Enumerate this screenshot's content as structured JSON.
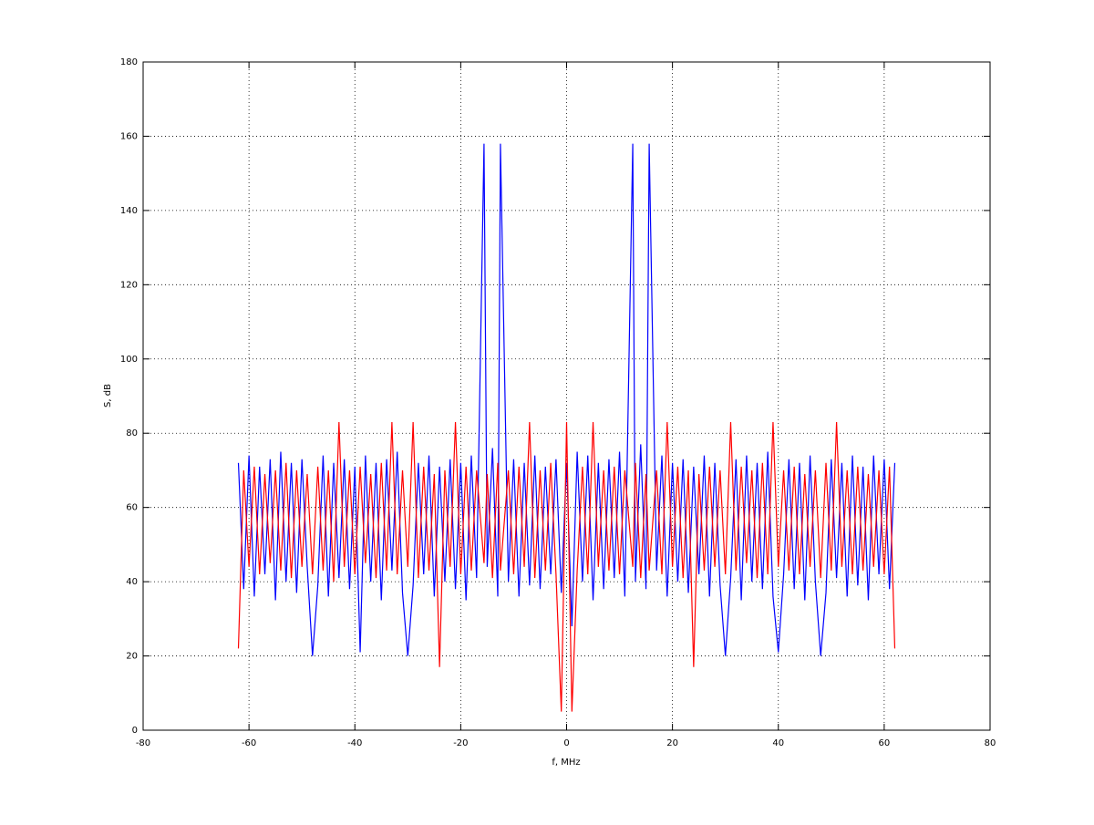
{
  "chart_data": {
    "type": "line",
    "xlabel": "f, MHz",
    "ylabel": "S, dB",
    "xlim": [
      -80,
      80
    ],
    "xticks": [
      -80,
      -60,
      -40,
      -20,
      0,
      20,
      40,
      60,
      80
    ],
    "ylim": [
      0,
      180
    ],
    "yticks": [
      0,
      20,
      40,
      60,
      80,
      100,
      120,
      140,
      160,
      180
    ],
    "grid": true,
    "x": [
      -62,
      -61,
      -60,
      -59,
      -58,
      -57,
      -56,
      -55,
      -54,
      -53,
      -52,
      -51,
      -50,
      -49,
      -48,
      -47,
      -46,
      -45,
      -44,
      -43,
      -42,
      -41,
      -40,
      -39,
      -38,
      -37,
      -36,
      -35,
      -34,
      -33,
      -32,
      -31,
      -30,
      -29,
      -28,
      -27,
      -26,
      -25,
      -24,
      -23,
      -22,
      -21,
      -20,
      -19,
      -18,
      -17,
      -15.6,
      -15,
      -14,
      -13,
      -12.5,
      -11,
      -10,
      -9,
      -8,
      -7,
      -6,
      -5,
      -4,
      -3,
      -2,
      -1,
      0,
      1,
      2,
      3,
      4,
      5,
      6,
      7,
      8,
      9,
      10,
      11,
      12.5,
      13,
      14,
      15,
      15.6,
      17,
      18,
      19,
      20,
      21,
      22,
      23,
      24,
      25,
      26,
      27,
      28,
      29,
      30,
      31,
      32,
      33,
      34,
      35,
      36,
      37,
      38,
      39,
      40,
      41,
      42,
      43,
      44,
      45,
      46,
      47,
      48,
      49,
      50,
      51,
      52,
      53,
      54,
      55,
      56,
      57,
      58,
      59,
      60,
      61,
      62
    ],
    "series": [
      {
        "color": "#0000ff",
        "values": [
          72,
          38,
          74,
          36,
          71,
          42,
          73,
          35,
          75,
          40,
          72,
          37,
          73,
          44,
          20,
          39,
          74,
          36,
          72,
          41,
          73,
          38,
          71,
          21,
          74,
          40,
          72,
          35,
          73,
          43,
          75,
          37,
          20,
          39,
          72,
          42,
          74,
          36,
          71,
          40,
          73,
          38,
          72,
          35,
          74,
          41,
          158,
          44,
          76,
          36,
          158,
          40,
          73,
          36,
          72,
          39,
          74,
          38,
          71,
          42,
          73,
          37,
          72,
          28,
          75,
          40,
          74,
          35,
          72,
          38,
          73,
          41,
          75,
          36,
          158,
          40,
          77,
          38,
          158,
          43,
          74,
          36,
          72,
          40,
          73,
          37,
          71,
          42,
          74,
          36,
          72,
          39,
          20,
          41,
          73,
          35,
          74,
          40,
          72,
          38,
          75,
          36,
          21,
          42,
          73,
          38,
          72,
          35,
          74,
          40,
          20,
          37,
          73,
          41,
          72,
          36,
          74,
          39,
          71,
          35,
          74,
          42,
          73,
          38,
          72
        ]
      },
      {
        "color": "#ff0000",
        "values": [
          22,
          70,
          44,
          71,
          42,
          69,
          45,
          70,
          43,
          72,
          41,
          70,
          44,
          69,
          42,
          71,
          43,
          70,
          40,
          83,
          44,
          70,
          42,
          71,
          45,
          69,
          41,
          72,
          43,
          83,
          42,
          70,
          44,
          83,
          41,
          71,
          43,
          69,
          17,
          70,
          44,
          83,
          42,
          71,
          43,
          70,
          45,
          69,
          41,
          72,
          43,
          70,
          42,
          71,
          44,
          83,
          41,
          70,
          43,
          72,
          42,
          5,
          83,
          5,
          43,
          71,
          42,
          83,
          44,
          70,
          43,
          71,
          42,
          70,
          44,
          72,
          41,
          69,
          43,
          70,
          42,
          83,
          44,
          71,
          41,
          70,
          17,
          69,
          43,
          71,
          44,
          70,
          42,
          83,
          43,
          71,
          45,
          70,
          41,
          72,
          42,
          83,
          44,
          70,
          43,
          71,
          42,
          69,
          44,
          70,
          41,
          72,
          43,
          83,
          44,
          70,
          42,
          71,
          43,
          69,
          44,
          70,
          42,
          71,
          22
        ]
      }
    ]
  }
}
